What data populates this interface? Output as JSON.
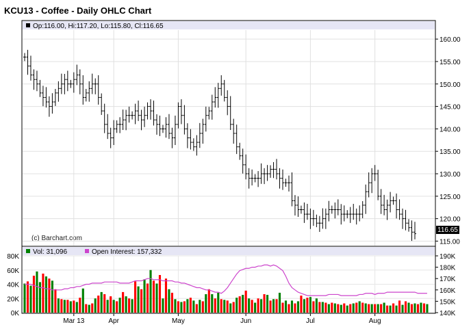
{
  "chart_data": [
    {
      "type": "ohlc",
      "title": "KCU13 - Coffee - Daily OHLC Chart",
      "header": "Op:116.00, Hi:117.20, Lo:115.80, Cl:116.65",
      "watermark": "(c) Barchart.com",
      "last_value": "116.65",
      "ylim": [
        114,
        162
      ],
      "yticks": [
        "115.00",
        "120.00",
        "125.00",
        "130.00",
        "135.00",
        "140.00",
        "145.00",
        "150.00",
        "155.00",
        "160.00"
      ],
      "ytick_values": [
        115,
        120,
        125,
        130,
        135,
        140,
        145,
        150,
        155,
        160
      ],
      "xlabels": [
        {
          "label": "Mar 13",
          "index": 16
        },
        {
          "label": "Apr",
          "index": 29
        },
        {
          "label": "May",
          "index": 50
        },
        {
          "label": "Jun",
          "index": 72
        },
        {
          "label": "Jul",
          "index": 93
        },
        {
          "label": "Aug",
          "index": 114
        }
      ],
      "colors": {
        "bar": "#000000",
        "header_bg": "#e6e6f5",
        "last_bg": "#000000"
      },
      "close": [
        156.0,
        154.0,
        152.0,
        151.0,
        150.0,
        148.0,
        147.0,
        146.0,
        145.0,
        146.0,
        148.0,
        149.0,
        150.0,
        151.0,
        150.0,
        150.0,
        151.0,
        152.0,
        150.0,
        147.0,
        148.0,
        149.0,
        150.0,
        150.0,
        147.0,
        144.0,
        141.0,
        139.0,
        138.0,
        140.0,
        141.0,
        141.0,
        142.0,
        143.0,
        143.0,
        143.0,
        144.0,
        143.0,
        142.0,
        143.0,
        145.0,
        144.0,
        142.0,
        141.0,
        140.0,
        140.0,
        141.0,
        139.0,
        138.0,
        141.0,
        145.0,
        143.0,
        140.0,
        138.0,
        137.0,
        136.0,
        137.0,
        139.0,
        141.0,
        143.0,
        144.0,
        146.0,
        147.0,
        149.0,
        150.0,
        147.0,
        145.0,
        141.0,
        139.0,
        136.0,
        134.0,
        132.0,
        130.0,
        129.0,
        129.0,
        129.0,
        129.0,
        130.0,
        130.0,
        130.0,
        131.0,
        131.0,
        130.0,
        129.0,
        128.0,
        128.0,
        128.0,
        124.0,
        123.0,
        122.0,
        122.0,
        121.0,
        121.0,
        120.0,
        120.0,
        119.0,
        119.0,
        120.0,
        121.0,
        122.0,
        122.0,
        122.0,
        122.0,
        121.0,
        121.0,
        121.0,
        121.0,
        121.0,
        121.0,
        121.0,
        123.0,
        126.0,
        128.0,
        130.0,
        130.0,
        125.0,
        123.0,
        122.0,
        123.0,
        124.0,
        124.0,
        122.0,
        121.0,
        120.0,
        119.0,
        118.0,
        117.0,
        116.65
      ],
      "ohlc_note": "Open/high/low of each bar are read approximately; close series above is the primary data.",
      "volume": {
        "label": "Vol: 31,096",
        "ylim": [
          0,
          80000
        ],
        "yticks": [
          "0K",
          "20K",
          "40K",
          "60K",
          "80K"
        ],
        "ytick_values": [
          0,
          20000,
          40000,
          60000,
          80000
        ],
        "colors": {
          "up": "#008000",
          "down": "#ff0000"
        },
        "values": [
          41,
          44,
          38,
          52,
          58,
          43,
          55,
          51,
          48,
          45,
          33,
          20,
          19,
          18,
          18,
          16,
          17,
          15,
          21,
          34,
          12,
          11,
          13,
          20,
          24,
          29,
          26,
          18,
          23,
          18,
          16,
          21,
          29,
          23,
          20,
          19,
          44,
          37,
          33,
          47,
          41,
          60,
          45,
          41,
          53,
          20,
          48,
          33,
          28,
          19,
          16,
          15,
          16,
          19,
          21,
          17,
          12,
          18,
          16,
          26,
          33,
          26,
          20,
          28,
          19,
          18,
          17,
          13,
          15,
          21,
          23,
          25,
          31,
          20,
          18,
          14,
          20,
          19,
          26,
          25,
          17,
          19,
          19,
          28,
          14,
          17,
          12,
          17,
          13,
          16,
          24,
          19,
          21,
          22,
          16,
          20,
          15,
          15,
          14,
          12,
          14,
          13,
          12,
          11,
          13,
          10,
          12,
          13,
          14,
          16,
          14,
          13,
          12,
          12,
          12,
          12,
          12,
          14,
          10,
          10,
          13,
          10,
          17,
          11,
          16,
          14,
          12,
          13,
          12,
          14,
          13,
          12
        ],
        "up": [
          1,
          0,
          1,
          0,
          1,
          1,
          0,
          1,
          0,
          1,
          0,
          1,
          0,
          1,
          0,
          1,
          0,
          1,
          0,
          1,
          0,
          1,
          0,
          1,
          0,
          1,
          0,
          1,
          0,
          1,
          0,
          1,
          0,
          1,
          0,
          1,
          0,
          1,
          0,
          1,
          0,
          1,
          0,
          1,
          0,
          1,
          0,
          1,
          0,
          1,
          0,
          1,
          0,
          1,
          0,
          1,
          0,
          1,
          0,
          1,
          0,
          1,
          0,
          1,
          0,
          1,
          0,
          1,
          0,
          1,
          0,
          1,
          0,
          1,
          0,
          1,
          0,
          1,
          0,
          1,
          0,
          1,
          0,
          1,
          0,
          1,
          0,
          1,
          0,
          1,
          0,
          1,
          0,
          1,
          0,
          1,
          0,
          1,
          0,
          1,
          0,
          1,
          0,
          1,
          0,
          1,
          0,
          1,
          0,
          1,
          0,
          1,
          0,
          1,
          0,
          1,
          0,
          1,
          0,
          1,
          0,
          1,
          0,
          1,
          0,
          1,
          0,
          1,
          0,
          1,
          0,
          1
        ]
      },
      "open_interest": {
        "label": "Open Interest: 157,332",
        "ylim": [
          140000,
          190000
        ],
        "yticks": [
          "140K",
          "150K",
          "160K",
          "170K",
          "180K",
          "190K"
        ],
        "ytick_values": [
          140000,
          150000,
          160000,
          170000,
          180000,
          190000
        ],
        "color": "#cc44cc",
        "values": [
          165,
          165,
          165,
          164,
          163,
          162,
          162,
          161,
          161,
          160,
          160,
          160,
          160,
          161,
          161,
          162,
          162,
          163,
          163,
          164,
          165,
          165,
          166,
          166,
          166,
          166,
          167,
          167,
          167,
          167,
          167,
          166,
          166,
          166,
          166,
          167,
          168,
          168,
          168,
          169,
          170,
          170,
          169,
          169,
          169,
          168,
          168,
          168,
          168,
          167,
          167,
          166,
          166,
          165,
          164,
          163,
          162,
          162,
          161,
          160,
          160,
          159,
          158,
          158,
          157,
          159,
          162,
          166,
          170,
          174,
          177,
          178,
          179,
          179,
          180,
          180,
          181,
          181,
          182,
          182,
          181,
          182,
          181,
          179,
          177,
          172,
          166,
          162,
          160,
          158,
          157,
          156,
          155,
          155,
          155,
          155,
          155,
          155,
          155,
          156,
          156,
          156,
          156,
          155,
          155,
          155,
          155,
          155,
          155,
          156,
          156,
          157,
          157,
          157,
          156,
          157,
          157,
          157,
          158,
          158,
          158,
          158,
          158,
          158,
          158,
          158,
          158,
          158,
          157,
          157,
          157,
          157
        ]
      }
    }
  ]
}
